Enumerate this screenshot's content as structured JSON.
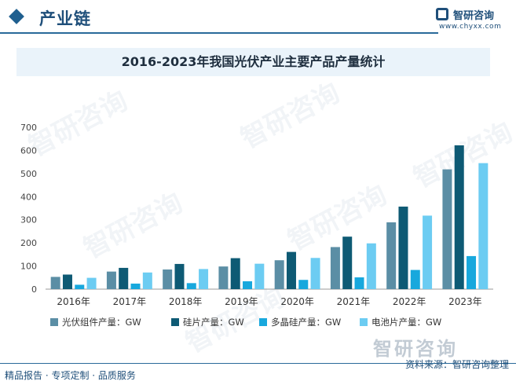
{
  "header": {
    "title": "产业链",
    "brand_name": "智研咨询",
    "brand_url": "www.chyxx.com"
  },
  "watermark": {
    "text": "智研咨询"
  },
  "chart_data": {
    "type": "bar",
    "title": "2016-2023年我国光伏产业主要产品产量统计",
    "categories": [
      "2016年",
      "2017年",
      "2018年",
      "2019年",
      "2020年",
      "2021年",
      "2022年",
      "2023年"
    ],
    "series": [
      {
        "name": "光伏组件产量：GW",
        "color": "#5b8ea5",
        "values": [
          53,
          76,
          85,
          98,
          125,
          182,
          289,
          518
        ]
      },
      {
        "name": "硅片产量：GW",
        "color": "#0e5a74",
        "values": [
          63,
          92,
          109,
          134,
          161,
          227,
          357,
          622
        ]
      },
      {
        "name": "多晶硅产量：GW",
        "color": "#18a8dd",
        "values": [
          19,
          24,
          26,
          34,
          40,
          51,
          83,
          143
        ]
      },
      {
        "name": "电池片产量：GW",
        "color": "#6cccf2",
        "values": [
          49,
          72,
          87,
          110,
          135,
          198,
          318,
          545
        ]
      }
    ],
    "ylim": [
      0,
      700
    ],
    "yticks": [
      0,
      100,
      200,
      300,
      400,
      500,
      600,
      700
    ],
    "xlabel": "",
    "ylabel": "",
    "grid": false,
    "legend": "bottom"
  },
  "footer": {
    "left": "精品报告 · 专项定制 · 品质服务",
    "source": "资料来源：智研咨询整理"
  }
}
